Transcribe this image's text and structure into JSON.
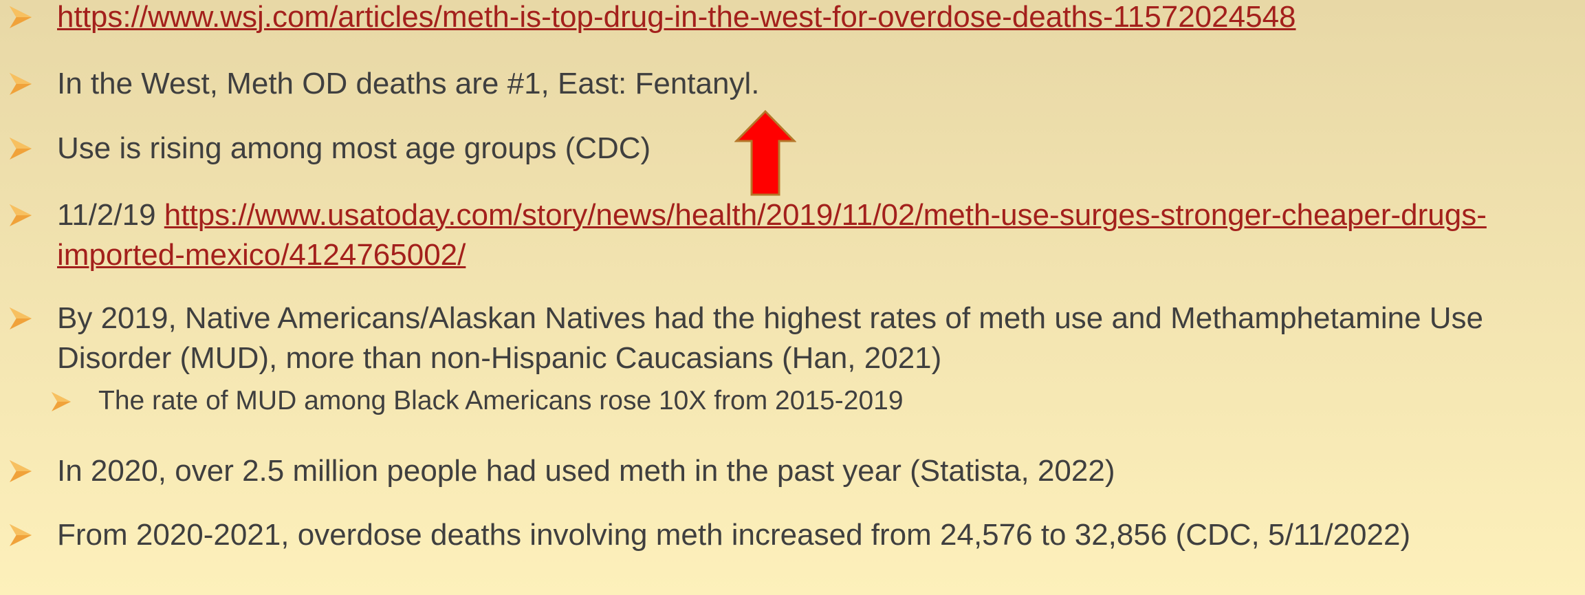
{
  "bullets": [
    {
      "link": "https://www.wsj.com/articles/meth-is-top-drug-in-the-west-for-overdose-deaths-11572024548"
    },
    {
      "text": "In the West, Meth OD deaths are #1, East: Fentanyl."
    },
    {
      "text": "Use is rising among most age groups (CDC)"
    },
    {
      "text": "11/2/19",
      "link": "https://www.usatoday.com/story/news/health/2019/11/02/meth-use-surges-stronger-cheaper-drugs-imported-mexico/4124765002/"
    },
    {
      "text": "By 2019, Native Americans/Alaskan Natives had the highest rates of meth use and Methamphetamine Use Disorder (MUD), more than non-Hispanic Caucasians (Han, 2021)",
      "sub": [
        "The rate of MUD among Black Americans rose 10X from 2015-2019"
      ]
    },
    {
      "text": "In 2020, over 2.5 million people had used meth in the past year (Statista, 2022)"
    },
    {
      "text": "From 2020-2021, overdose deaths involving meth increased from 24,576 to 32,856 (CDC, 5/11/2022)"
    }
  ]
}
